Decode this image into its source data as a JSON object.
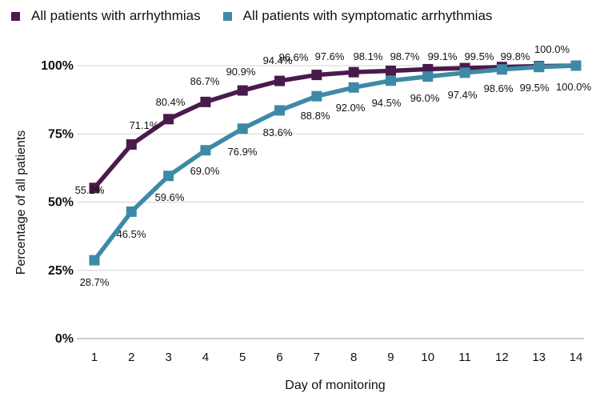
{
  "chart_data": {
    "type": "line",
    "title": "",
    "xlabel": "Day of monitoring",
    "ylabel": "Percentage of all patients",
    "x": [
      1,
      2,
      3,
      4,
      5,
      6,
      7,
      8,
      9,
      10,
      11,
      12,
      13,
      14
    ],
    "x_tick_labels": [
      "1",
      "2",
      "3",
      "4",
      "5",
      "6",
      "7",
      "8",
      "9",
      "10",
      "11",
      "12",
      "13",
      "14"
    ],
    "y_ticks": [
      0,
      25,
      50,
      75,
      100
    ],
    "y_tick_labels": [
      "0%",
      "25%",
      "50%",
      "75%",
      "100%"
    ],
    "ylim": [
      0,
      100
    ],
    "grid": "horizontal",
    "legend_position": "top-left",
    "series": [
      {
        "name": "All patients with arrhythmias",
        "color": "#4a1a4c",
        "values": [
          55.2,
          71.1,
          80.4,
          86.7,
          90.9,
          94.4,
          96.6,
          97.6,
          98.1,
          98.7,
          99.1,
          99.5,
          99.8,
          100.0
        ],
        "labels": [
          "55.2%",
          "71.1%",
          "80.4%",
          "86.7%",
          "90.9%",
          "94.4%",
          "96.6%",
          "97.6%",
          "98.1%",
          "98.7%",
          "99.1%",
          "99.5%",
          "99.8%",
          "100.0%"
        ]
      },
      {
        "name": "All patients with symptomatic arrhythmias",
        "color": "#3e8aa6",
        "values": [
          28.7,
          46.5,
          59.6,
          69.0,
          76.9,
          83.6,
          88.8,
          92.0,
          94.5,
          96.0,
          97.4,
          98.6,
          99.5,
          100.0
        ],
        "labels": [
          "28.7%",
          "46.5%",
          "59.6%",
          "69.0%",
          "76.9%",
          "83.6%",
          "88.8%",
          "92.0%",
          "94.5%",
          "96.0%",
          "97.4%",
          "98.6%",
          "99.5%",
          "100.0%"
        ]
      }
    ]
  }
}
